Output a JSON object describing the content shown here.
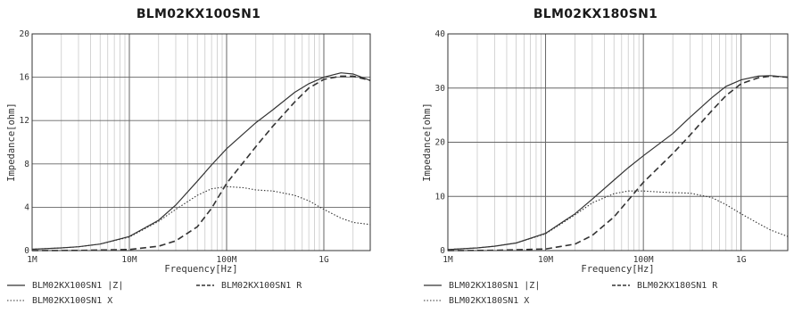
{
  "chart_data": [
    {
      "type": "line",
      "title": "BLM02KX100SN1",
      "xlabel": "Frequency[Hz]",
      "ylabel": "Impedance[ohm]",
      "xscale": "log",
      "xlim": [
        1000000,
        3000000000
      ],
      "ylim": [
        0,
        20
      ],
      "x_ticks": [
        {
          "value": 1000000,
          "label": "1M"
        },
        {
          "value": 10000000,
          "label": "10M"
        },
        {
          "value": 100000000,
          "label": "100M"
        },
        {
          "value": 1000000000,
          "label": "1G"
        }
      ],
      "y_ticks": [
        0,
        4,
        8,
        12,
        16,
        20
      ],
      "grid": true,
      "legend_position": "bottom",
      "series": [
        {
          "name": "BLM02KX100SN1 |Z|",
          "style": "solid",
          "x": [
            1000000,
            2000000,
            3000000,
            5000000,
            10000000,
            20000000,
            30000000,
            50000000,
            70000000,
            100000000,
            200000000,
            300000000,
            500000000,
            700000000,
            1000000000,
            1500000000,
            2000000000,
            3000000000
          ],
          "y": [
            0.12,
            0.25,
            0.35,
            0.6,
            1.3,
            2.8,
            4.2,
            6.4,
            7.9,
            9.4,
            11.8,
            13.0,
            14.6,
            15.4,
            16.0,
            16.4,
            16.3,
            15.7
          ]
        },
        {
          "name": "BLM02KX100SN1 R",
          "style": "dashed",
          "x": [
            1000000,
            3000000,
            10000000,
            20000000,
            30000000,
            50000000,
            70000000,
            100000000,
            200000000,
            300000000,
            500000000,
            700000000,
            1000000000,
            1500000000,
            2000000000,
            3000000000
          ],
          "y": [
            0.0,
            0.02,
            0.1,
            0.4,
            0.9,
            2.2,
            3.9,
            6.2,
            9.6,
            11.5,
            13.7,
            15.0,
            15.8,
            16.1,
            16.1,
            15.7
          ]
        },
        {
          "name": "BLM02KX100SN1 X",
          "style": "dotted",
          "x": [
            1000000,
            2000000,
            3000000,
            5000000,
            10000000,
            20000000,
            30000000,
            50000000,
            70000000,
            100000000,
            150000000,
            200000000,
            300000000,
            500000000,
            700000000,
            1000000000,
            1500000000,
            2000000000,
            3000000000
          ],
          "y": [
            0.12,
            0.25,
            0.35,
            0.6,
            1.25,
            2.7,
            3.8,
            5.1,
            5.7,
            5.9,
            5.8,
            5.6,
            5.5,
            5.1,
            4.6,
            3.8,
            3.0,
            2.6,
            2.4
          ]
        }
      ]
    },
    {
      "type": "line",
      "title": "BLM02KX180SN1",
      "xlabel": "Frequency[Hz]",
      "ylabel": "Impedance[ohm]",
      "xscale": "log",
      "xlim": [
        1000000,
        3000000000
      ],
      "ylim": [
        0,
        40
      ],
      "x_ticks": [
        {
          "value": 1000000,
          "label": "1M"
        },
        {
          "value": 10000000,
          "label": "10M"
        },
        {
          "value": 100000000,
          "label": "100M"
        },
        {
          "value": 1000000000,
          "label": "1G"
        }
      ],
      "y_ticks": [
        0,
        10,
        20,
        30,
        40
      ],
      "grid": true,
      "legend_position": "bottom",
      "series": [
        {
          "name": "BLM02KX180SN1 |Z|",
          "style": "solid",
          "x": [
            1000000,
            2000000,
            3000000,
            5000000,
            10000000,
            20000000,
            30000000,
            50000000,
            70000000,
            100000000,
            200000000,
            300000000,
            500000000,
            700000000,
            1000000000,
            1500000000,
            2000000000,
            3000000000
          ],
          "y": [
            0.2,
            0.5,
            0.8,
            1.4,
            3.2,
            6.8,
            9.5,
            13.0,
            15.3,
            17.5,
            21.6,
            24.6,
            28.2,
            30.3,
            31.5,
            32.2,
            32.3,
            32.0
          ]
        },
        {
          "name": "BLM02KX180SN1 R",
          "style": "dashed",
          "x": [
            1000000,
            3000000,
            10000000,
            20000000,
            30000000,
            50000000,
            70000000,
            100000000,
            200000000,
            300000000,
            500000000,
            700000000,
            1000000000,
            1500000000,
            2000000000,
            3000000000
          ],
          "y": [
            0.0,
            0.05,
            0.3,
            1.2,
            2.8,
            6.2,
            9.3,
            12.6,
            17.9,
            21.3,
            25.8,
            28.6,
            30.8,
            31.9,
            32.2,
            32.0
          ]
        },
        {
          "name": "BLM02KX180SN1 X",
          "style": "dotted",
          "x": [
            1000000,
            2000000,
            3000000,
            5000000,
            10000000,
            20000000,
            30000000,
            50000000,
            70000000,
            100000000,
            150000000,
            200000000,
            300000000,
            500000000,
            700000000,
            1000000000,
            1500000000,
            2000000000,
            3000000000
          ],
          "y": [
            0.2,
            0.5,
            0.8,
            1.4,
            3.1,
            6.6,
            8.8,
            10.5,
            11.0,
            11.0,
            10.8,
            10.7,
            10.6,
            9.8,
            8.5,
            6.8,
            5.0,
            3.8,
            2.6
          ]
        }
      ]
    }
  ]
}
